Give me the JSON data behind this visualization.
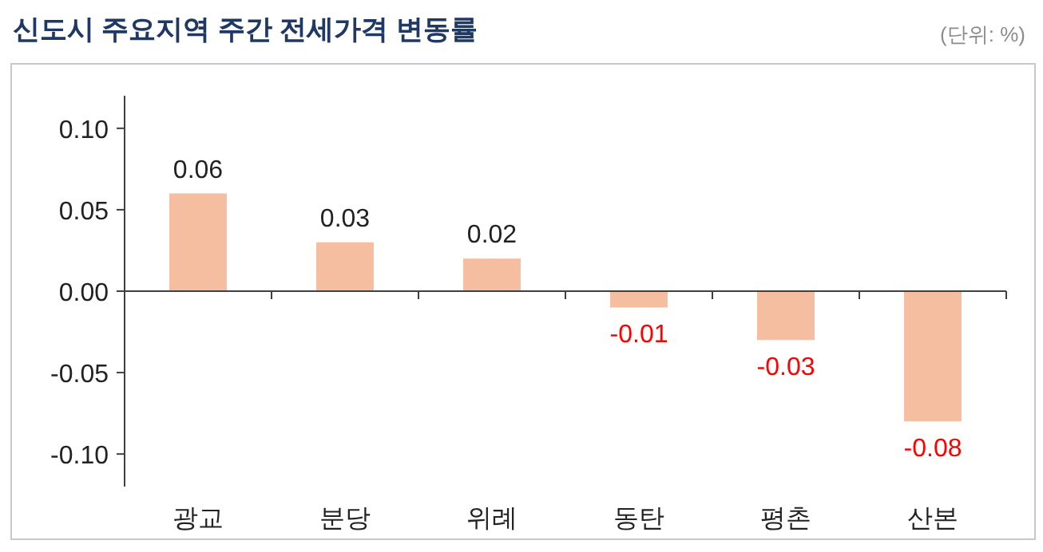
{
  "chart_data": {
    "type": "bar",
    "title": "신도시 주요지역 주간 전세가격 변동률",
    "annotations": [
      "(단위: %)"
    ],
    "categories": [
      "광교",
      "분당",
      "위례",
      "동탄",
      "평촌",
      "산본"
    ],
    "values": [
      0.06,
      0.03,
      0.02,
      -0.01,
      -0.03,
      -0.08
    ],
    "color": "#f5bea1",
    "data_labels": true,
    "ylim": [
      -0.12,
      0.12
    ],
    "yticks": [
      {
        "value": -0.1,
        "label": "-0.10"
      },
      {
        "value": -0.05,
        "label": "-0.05"
      },
      {
        "value": 0,
        "label": "0.00"
      },
      {
        "value": 0.05,
        "label": "0.05"
      },
      {
        "value": 0.1,
        "label": "0.10"
      }
    ]
  }
}
